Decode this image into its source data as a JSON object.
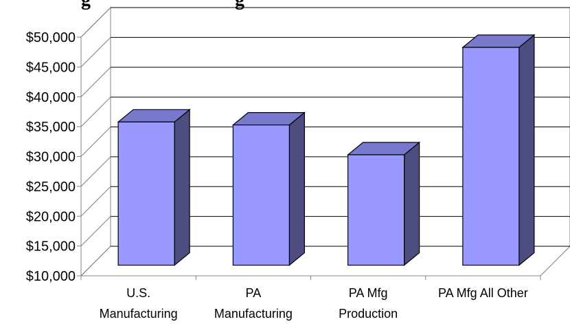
{
  "chart_data": {
    "type": "bar",
    "title": "g                              g",
    "categories": [
      [
        "U.S.",
        "Manufacturing"
      ],
      [
        "PA",
        "Manufacturing"
      ],
      [
        "PA Mfg",
        "Production"
      ],
      [
        "PA Mfg All Other"
      ]
    ],
    "series": [
      {
        "values": [
          34000,
          33500,
          28500,
          46500
        ]
      }
    ],
    "ylim": [
      10000,
      50000
    ],
    "yticks": [
      10000,
      15000,
      20000,
      25000,
      30000,
      35000,
      40000,
      45000,
      50000
    ],
    "ytick_labels": [
      "$10,000",
      "$15,000",
      "$20,000",
      "$25,000",
      "$30,000",
      "$35,000",
      "$40,000",
      "$45,000",
      "$50,000"
    ],
    "grid": true,
    "legend": "none",
    "colors": {
      "bar_front": "#9999ff",
      "bar_top": "#7878cc",
      "bar_side": "#4d4d80",
      "grid": "#000000",
      "walls": "#808080"
    }
  }
}
